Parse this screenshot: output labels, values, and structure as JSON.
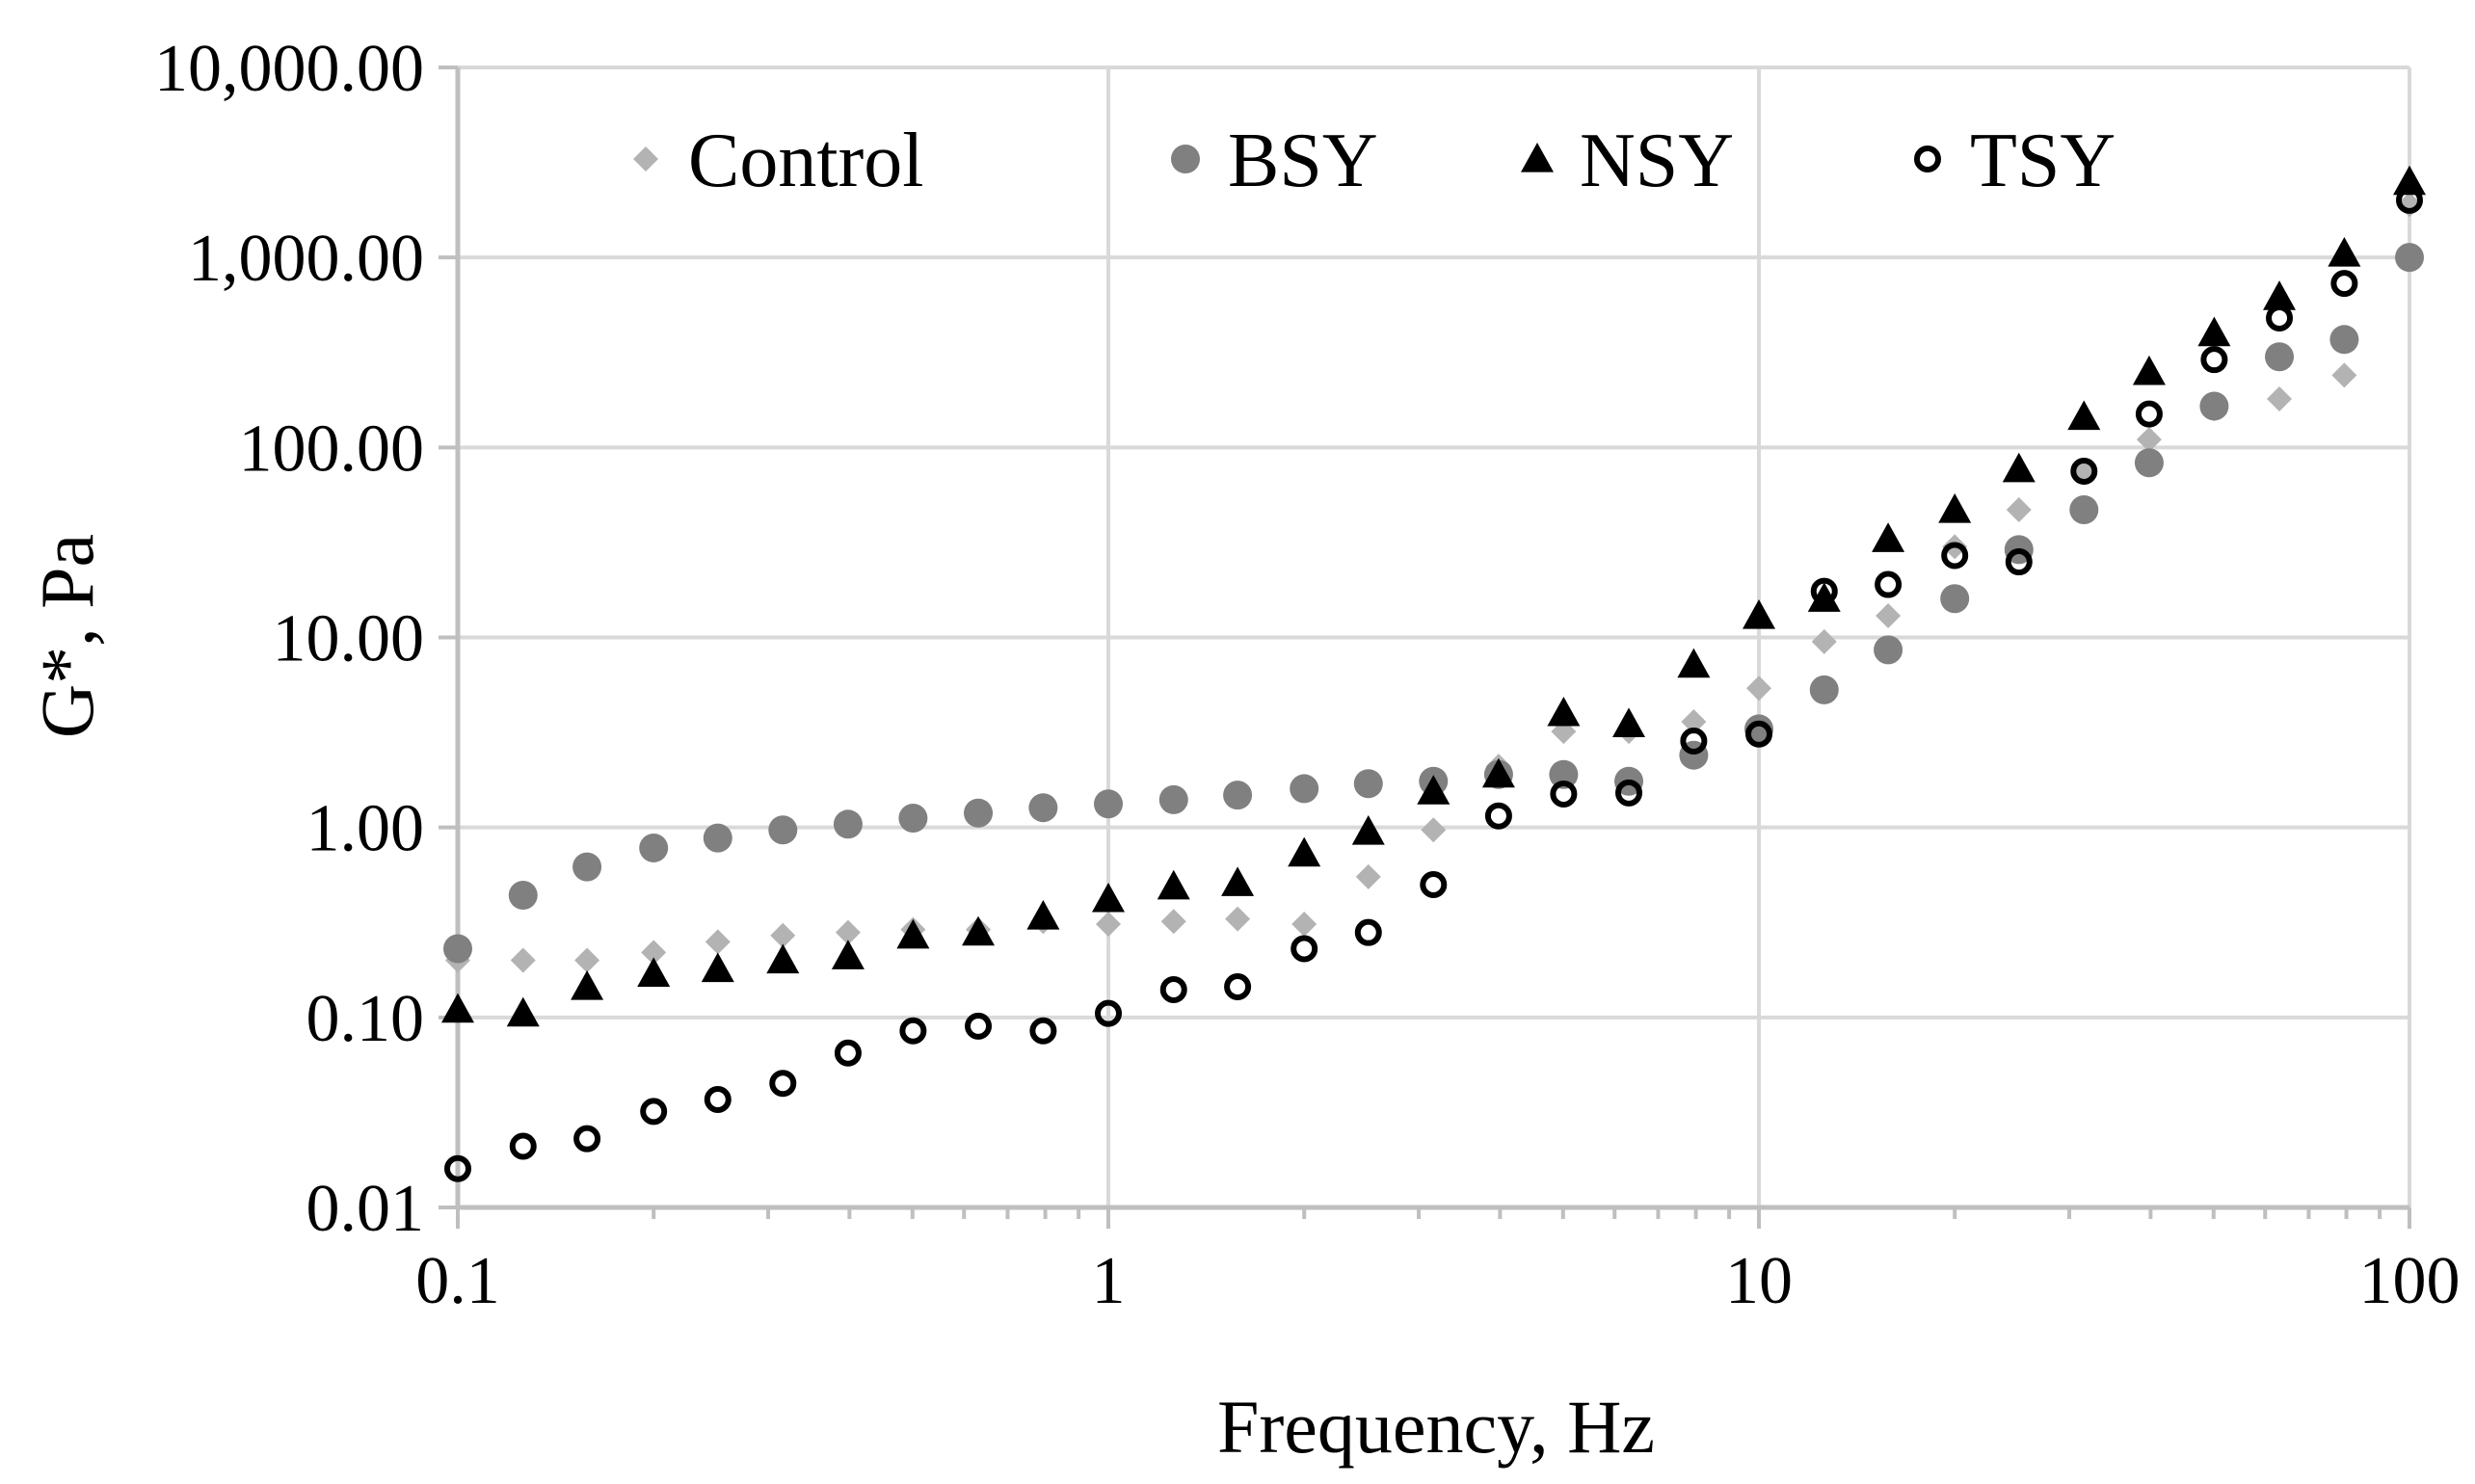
{
  "chart_data": {
    "type": "scatter",
    "title": "",
    "xlabel": "Frequency, Hz",
    "ylabel": "G*, Pa",
    "xscale": "log",
    "yscale": "log",
    "xlim": [
      0.1,
      100
    ],
    "ylim": [
      0.01,
      10000
    ],
    "grid": true,
    "legend_position": "top",
    "x_tick_labels": [
      "0.1",
      "1",
      "10",
      "100"
    ],
    "y_tick_labels": [
      "0.01",
      "0.10",
      "1.00",
      "10.00",
      "100.00",
      "1,000.00",
      "10,000.00"
    ],
    "x": [
      0.1,
      0.126,
      0.158,
      0.2,
      0.251,
      0.316,
      0.398,
      0.501,
      0.631,
      0.794,
      1.0,
      1.26,
      1.58,
      2.0,
      2.51,
      3.16,
      3.98,
      5.01,
      6.31,
      7.94,
      10.0,
      12.6,
      15.8,
      20.0,
      25.1,
      31.6,
      39.8,
      50.1,
      63.1,
      79.4,
      100
    ],
    "series": [
      {
        "name": "Control",
        "marker": "diamond",
        "color": "#b3b3b3",
        "values": [
          0.2,
          0.2,
          0.2,
          0.22,
          0.25,
          0.27,
          0.28,
          0.29,
          0.29,
          0.32,
          0.31,
          0.32,
          0.33,
          0.31,
          0.55,
          0.97,
          2.1,
          3.2,
          3.2,
          3.6,
          5.4,
          9.5,
          13,
          30,
          47,
          75,
          110,
          160,
          180,
          240,
          1900
        ]
      },
      {
        "name": "BSY",
        "marker": "filled-circle",
        "color": "#808080",
        "values": [
          0.23,
          0.44,
          0.62,
          0.78,
          0.88,
          0.97,
          1.04,
          1.12,
          1.19,
          1.27,
          1.33,
          1.4,
          1.48,
          1.6,
          1.7,
          1.75,
          1.9,
          1.9,
          1.75,
          2.4,
          3.3,
          5.3,
          8.6,
          16,
          29,
          47,
          83,
          165,
          300,
          370,
          1000
        ]
      },
      {
        "name": "NSY",
        "marker": "filled-triangle",
        "color": "#000000",
        "values": [
          0.11,
          0.105,
          0.145,
          0.17,
          0.18,
          0.2,
          0.21,
          0.27,
          0.28,
          0.34,
          0.42,
          0.49,
          0.51,
          0.73,
          0.95,
          1.55,
          1.9,
          4.0,
          3.5,
          7.2,
          13,
          16,
          33,
          47,
          77,
          145,
          250,
          400,
          620,
          1050,
          2500
        ]
      },
      {
        "name": "TSY",
        "marker": "open-circle",
        "color": "#000000",
        "values": [
          0.016,
          0.021,
          0.023,
          0.032,
          0.037,
          0.045,
          0.065,
          0.085,
          0.09,
          0.085,
          0.105,
          0.14,
          0.145,
          0.23,
          0.28,
          0.5,
          1.15,
          1.5,
          1.52,
          2.85,
          3.1,
          17.5,
          19,
          27,
          25,
          75,
          150,
          290,
          480,
          730,
          2000
        ]
      }
    ]
  }
}
